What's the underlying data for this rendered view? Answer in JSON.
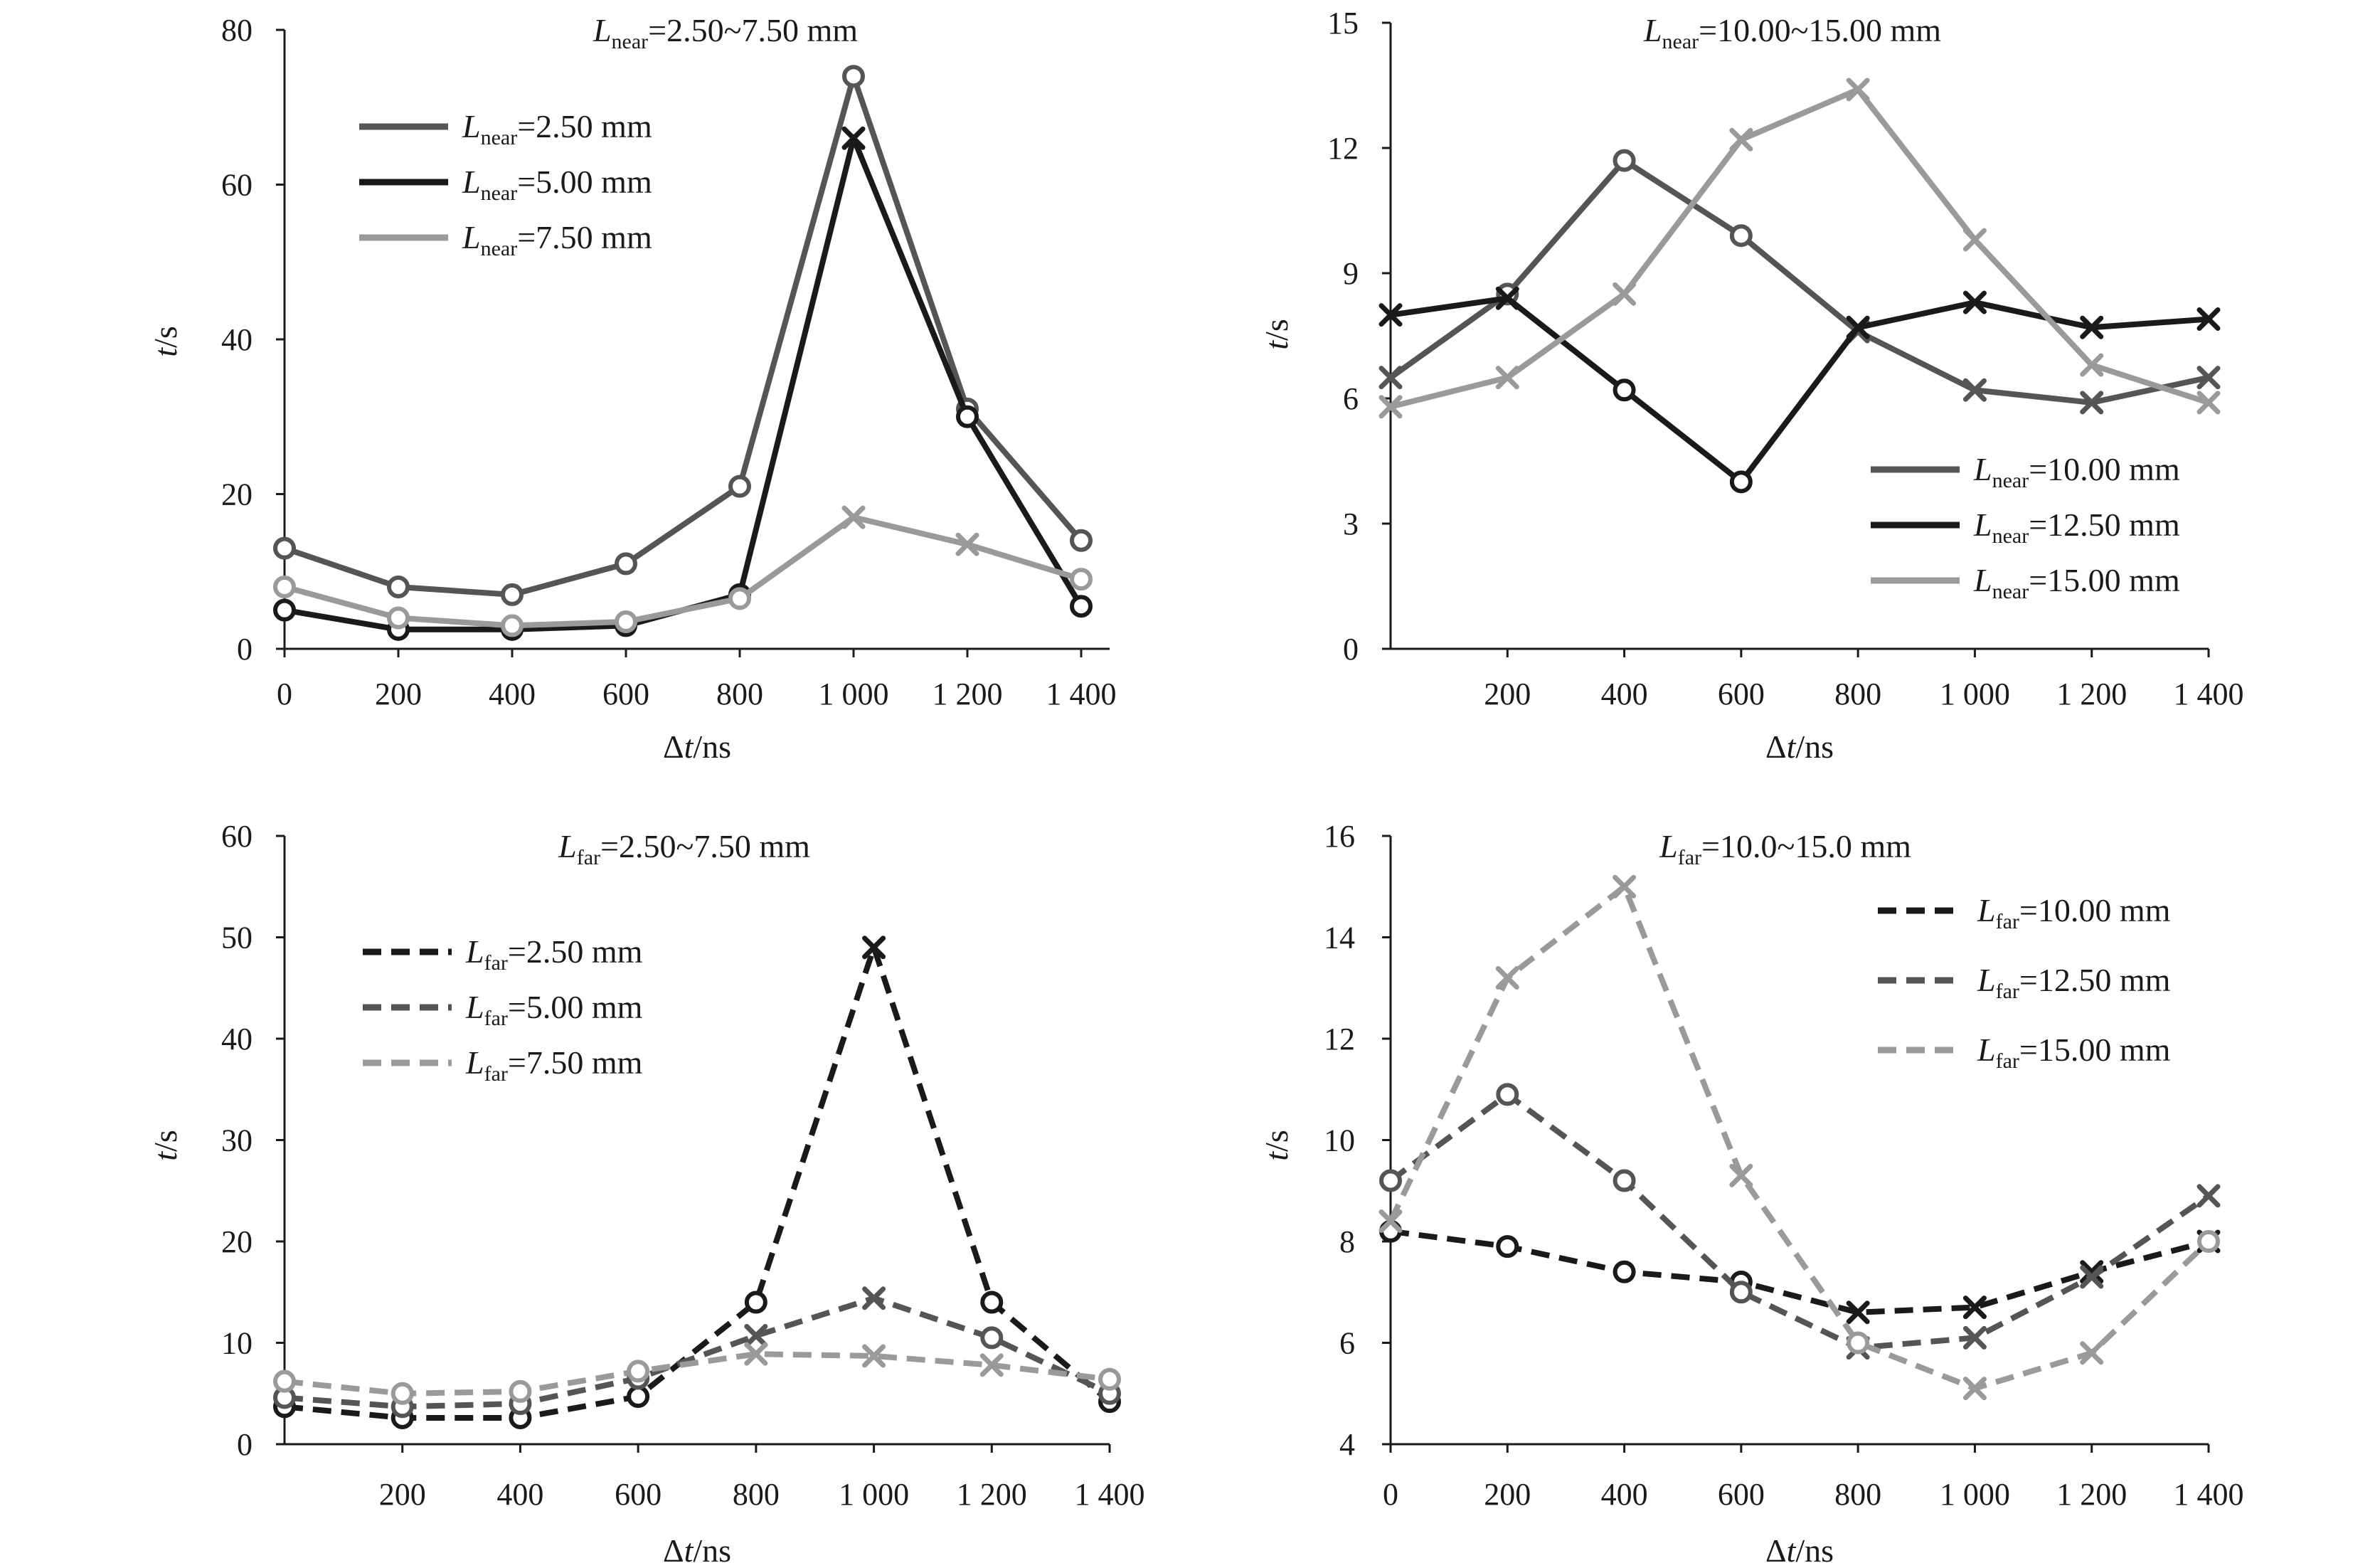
{
  "chart_data": [
    {
      "type": "line",
      "title": {
        "main": "L",
        "sub": "near",
        "rest": "=2.50~7.50 mm"
      },
      "xlabel": {
        "delta": "Δ",
        "italic": "t",
        "rest": "/ns"
      },
      "ylabel": {
        "italic": "t",
        "rest": "/s"
      },
      "x": [
        0,
        200,
        400,
        600,
        800,
        1000,
        1200,
        1400
      ],
      "xticks": [
        "0",
        "200",
        "400",
        "600",
        "800",
        "1 000",
        "1 200",
        "1 400"
      ],
      "yticks": [
        "0",
        "20",
        "40",
        "60",
        "80"
      ],
      "yticks_values": [
        0,
        20,
        40,
        60,
        80
      ],
      "ylim": [
        0,
        80
      ],
      "xlim": [
        0,
        1450
      ],
      "legend_position": "top-left",
      "series": [
        {
          "name_main": "L",
          "name_sub": "near",
          "name_rest": "=2.50 mm",
          "color": "#555555",
          "dash": "solid",
          "markers": [
            "o",
            "o",
            "o",
            "o",
            "o",
            "o",
            "o",
            "o"
          ],
          "values": [
            13,
            8,
            7,
            11,
            21,
            74,
            31,
            14
          ]
        },
        {
          "name_main": "L",
          "name_sub": "near",
          "name_rest": "=5.00 mm",
          "color": "#1a1a1a",
          "dash": "solid",
          "markers": [
            "o",
            "o",
            "o",
            "o",
            "o",
            "x",
            "o",
            "o"
          ],
          "values": [
            5,
            2.5,
            2.5,
            3,
            7,
            66,
            30,
            5.5
          ]
        },
        {
          "name_main": "L",
          "name_sub": "near",
          "name_rest": "=7.50 mm",
          "color": "#9a9a9a",
          "dash": "solid",
          "markers": [
            "o",
            "o",
            "o",
            "o",
            "o",
            "x",
            "x",
            "o"
          ],
          "values": [
            8,
            4,
            3,
            3.5,
            6.5,
            17,
            13.5,
            9
          ]
        }
      ]
    },
    {
      "type": "line",
      "title": {
        "main": "L",
        "sub": "near",
        "rest": "=10.00~15.00 mm"
      },
      "xlabel": {
        "delta": "Δ",
        "italic": "t",
        "rest": "/ns"
      },
      "ylabel": {
        "italic": "t",
        "rest": "/s"
      },
      "x": [
        0,
        200,
        400,
        600,
        800,
        1000,
        1200,
        1400
      ],
      "xticks": [
        "200",
        "400",
        "600",
        "800",
        "1 000",
        "1 200",
        "1 400"
      ],
      "xticks_values": [
        200,
        400,
        600,
        800,
        1000,
        1200,
        1400
      ],
      "yticks": [
        "0",
        "3",
        "6",
        "9",
        "12",
        "15"
      ],
      "yticks_values": [
        0,
        3,
        6,
        9,
        12,
        15
      ],
      "ylim": [
        0,
        15
      ],
      "xlim": [
        0,
        1400
      ],
      "legend_position": "bottom-right",
      "series": [
        {
          "name_main": "L",
          "name_sub": "near",
          "name_rest": "=10.00 mm",
          "color": "#555555",
          "dash": "solid",
          "markers": [
            "x",
            "o",
            "o",
            "o",
            "x",
            "x",
            "x",
            "x"
          ],
          "values": [
            6.5,
            8.5,
            11.7,
            9.9,
            7.6,
            6.2,
            5.9,
            6.5
          ]
        },
        {
          "name_main": "L",
          "name_sub": "near",
          "name_rest": "=12.50 mm",
          "color": "#1a1a1a",
          "dash": "solid",
          "markers": [
            "x",
            "x",
            "o",
            "o",
            "x",
            "x",
            "x",
            "x"
          ],
          "values": [
            8,
            8.4,
            6.2,
            4.0,
            7.7,
            8.3,
            7.7,
            7.9
          ]
        },
        {
          "name_main": "L",
          "name_sub": "near",
          "name_rest": "=15.00 mm",
          "color": "#9a9a9a",
          "dash": "solid",
          "markers": [
            "x",
            "x",
            "x",
            "x",
            "x",
            "x",
            "x",
            "x"
          ],
          "values": [
            5.8,
            6.5,
            8.5,
            12.2,
            13.4,
            9.8,
            6.8,
            5.9
          ]
        }
      ]
    },
    {
      "type": "line",
      "title": {
        "main": "L",
        "sub": "far",
        "rest": "=2.50~7.50 mm"
      },
      "xlabel": {
        "delta": "Δ",
        "italic": "t",
        "rest": "/ns"
      },
      "ylabel": {
        "italic": "t",
        "rest": "/s"
      },
      "x": [
        0,
        200,
        400,
        600,
        800,
        1000,
        1200,
        1400
      ],
      "xticks": [
        "200",
        "400",
        "600",
        "800",
        "1 000",
        "1 200",
        "1 400"
      ],
      "xticks_values": [
        200,
        400,
        600,
        800,
        1000,
        1200,
        1400
      ],
      "yticks": [
        "0",
        "10",
        "20",
        "30",
        "40",
        "50",
        "60"
      ],
      "yticks_values": [
        0,
        10,
        20,
        30,
        40,
        50,
        60
      ],
      "ylim": [
        0,
        60
      ],
      "xlim": [
        0,
        1400
      ],
      "legend_position": "top-left",
      "series": [
        {
          "name_main": "L",
          "name_sub": "far",
          "name_rest": "=2.50 mm",
          "color": "#1a1a1a",
          "dash": "dashed",
          "markers": [
            "o",
            "o",
            "o",
            "o",
            "o",
            "x",
            "o",
            "o"
          ],
          "values": [
            3.7,
            2.6,
            2.6,
            4.7,
            14,
            49,
            14,
            4.2
          ]
        },
        {
          "name_main": "L",
          "name_sub": "far",
          "name_rest": "=5.00 mm",
          "color": "#555555",
          "dash": "dashed",
          "markers": [
            "o",
            "o",
            "o",
            "o",
            "x",
            "x",
            "o",
            "o"
          ],
          "values": [
            4.6,
            3.7,
            4.0,
            6.5,
            10.7,
            14.4,
            10.5,
            5.0
          ]
        },
        {
          "name_main": "L",
          "name_sub": "far",
          "name_rest": "=7.50 mm",
          "color": "#9a9a9a",
          "dash": "dashed",
          "markers": [
            "o",
            "o",
            "o",
            "o",
            "x",
            "x",
            "x",
            "o"
          ],
          "values": [
            6.2,
            5.0,
            5.2,
            7.2,
            8.9,
            8.7,
            7.8,
            6.4
          ]
        }
      ]
    },
    {
      "type": "line",
      "title": {
        "main": "L",
        "sub": "far",
        "rest": "=10.0~15.0 mm"
      },
      "xlabel": {
        "delta": "Δ",
        "italic": "t",
        "rest": "/ns"
      },
      "ylabel": {
        "italic": "t",
        "rest": "/s"
      },
      "x": [
        0,
        200,
        400,
        600,
        800,
        1000,
        1200,
        1400
      ],
      "xticks": [
        "0",
        "200",
        "400",
        "600",
        "800",
        "1 000",
        "1 200",
        "1 400"
      ],
      "xticks_values": [
        0,
        200,
        400,
        600,
        800,
        1000,
        1200,
        1400
      ],
      "yticks": [
        "4",
        "6",
        "8",
        "10",
        "12",
        "14",
        "16"
      ],
      "yticks_values": [
        4,
        6,
        8,
        10,
        12,
        14,
        16
      ],
      "ylim": [
        4,
        16
      ],
      "xlim": [
        0,
        1400
      ],
      "legend_position": "top-right",
      "series": [
        {
          "name_main": "L",
          "name_sub": "far",
          "name_rest": "=10.00 mm",
          "color": "#1a1a1a",
          "dash": "dashed",
          "markers": [
            "o",
            "o",
            "o",
            "o",
            "x",
            "x",
            "x",
            "x"
          ],
          "values": [
            8.2,
            7.9,
            7.4,
            7.2,
            6.6,
            6.7,
            7.4,
            8.0
          ]
        },
        {
          "name_main": "L",
          "name_sub": "far",
          "name_rest": "=12.50 mm",
          "color": "#555555",
          "dash": "dashed",
          "markers": [
            "o",
            "o",
            "o",
            "o",
            "x",
            "x",
            "x",
            "x"
          ],
          "values": [
            9.2,
            10.9,
            9.2,
            7.0,
            5.9,
            6.1,
            7.3,
            8.9
          ]
        },
        {
          "name_main": "L",
          "name_sub": "far",
          "name_rest": "=15.00 mm",
          "color": "#9a9a9a",
          "dash": "dashed",
          "markers": [
            "x",
            "x",
            "x",
            "x",
            "o",
            "x",
            "x",
            "o"
          ],
          "values": [
            8.4,
            13.2,
            15.0,
            9.3,
            6.0,
            5.1,
            5.8,
            8.0
          ]
        }
      ]
    }
  ]
}
